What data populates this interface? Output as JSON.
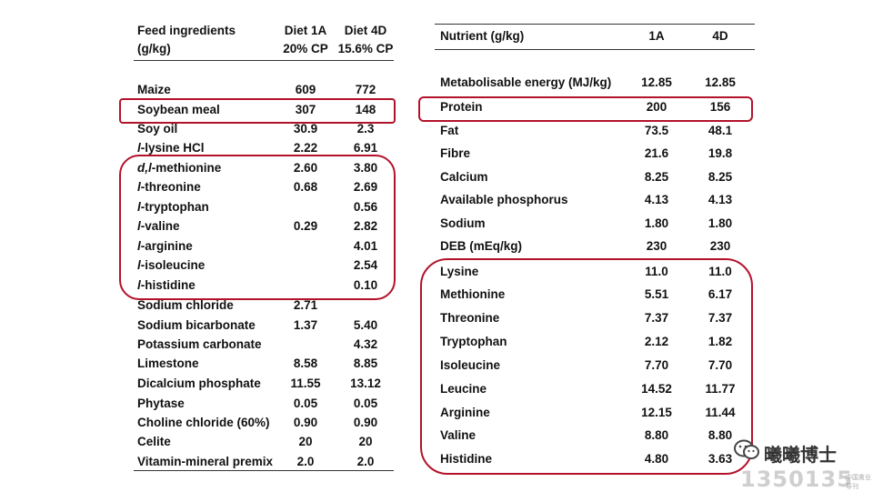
{
  "left_table": {
    "header": {
      "col1_line1": "Feed ingredients",
      "col1_line2": "(g/kg)",
      "col2_line1": "Diet 1A",
      "col2_line2": "20% CP",
      "col3_line1": "Diet 4D",
      "col3_line2": "15.6% CP"
    },
    "rows": [
      {
        "name_pre": "",
        "name_it": "",
        "name_post": "Maize",
        "v1": "609",
        "v2": "772"
      },
      {
        "name_pre": "",
        "name_it": "",
        "name_post": "Soybean meal",
        "v1": "307",
        "v2": "148"
      },
      {
        "name_pre": "",
        "name_it": "",
        "name_post": "Soy oil",
        "v1": "30.9",
        "v2": "2.3"
      },
      {
        "name_pre": "",
        "name_it": "l",
        "name_post": "-lysine HCl",
        "v1": "2.22",
        "v2": "6.91"
      },
      {
        "name_pre": "",
        "name_it": "d,l",
        "name_post": "-methionine",
        "v1": "2.60",
        "v2": "3.80"
      },
      {
        "name_pre": "",
        "name_it": "l",
        "name_post": "-threonine",
        "v1": "0.68",
        "v2": "2.69"
      },
      {
        "name_pre": "",
        "name_it": "l",
        "name_post": "-tryptophan",
        "v1": "",
        "v2": "0.56"
      },
      {
        "name_pre": "",
        "name_it": "l",
        "name_post": "-valine",
        "v1": "0.29",
        "v2": "2.82"
      },
      {
        "name_pre": "",
        "name_it": "l",
        "name_post": "-arginine",
        "v1": "",
        "v2": "4.01"
      },
      {
        "name_pre": "",
        "name_it": "l",
        "name_post": "-isoleucine",
        "v1": "",
        "v2": "2.54"
      },
      {
        "name_pre": "",
        "name_it": "l",
        "name_post": "-histidine",
        "v1": "",
        "v2": "0.10"
      },
      {
        "name_pre": "",
        "name_it": "",
        "name_post": "Sodium chloride",
        "v1": "2.71",
        "v2": ""
      },
      {
        "name_pre": "",
        "name_it": "",
        "name_post": "Sodium bicarbonate",
        "v1": "1.37",
        "v2": "5.40"
      },
      {
        "name_pre": "",
        "name_it": "",
        "name_post": "Potassium carbonate",
        "v1": "",
        "v2": "4.32"
      },
      {
        "name_pre": "",
        "name_it": "",
        "name_post": "Limestone",
        "v1": "8.58",
        "v2": "8.85"
      },
      {
        "name_pre": "",
        "name_it": "",
        "name_post": "Dicalcium phosphate",
        "v1": "11.55",
        "v2": "13.12"
      },
      {
        "name_pre": "",
        "name_it": "",
        "name_post": "Phytase",
        "v1": "0.05",
        "v2": "0.05"
      },
      {
        "name_pre": "",
        "name_it": "",
        "name_post": "Choline chloride (60%)",
        "v1": "0.90",
        "v2": "0.90"
      },
      {
        "name_pre": "",
        "name_it": "",
        "name_post": "Celite",
        "v1": "20",
        "v2": "20"
      },
      {
        "name_pre": "",
        "name_it": "",
        "name_post": "Vitamin-mineral premix",
        "v1": "2.0",
        "v2": "2.0"
      }
    ]
  },
  "right_table": {
    "header": {
      "col1": "Nutrient (g/kg)",
      "col2": "1A",
      "col3": "4D"
    },
    "rows": [
      {
        "name": "Metabolisable energy (MJ/kg)",
        "v1": "12.85",
        "v2": "12.85"
      },
      {
        "name": "Protein",
        "v1": "200",
        "v2": "156"
      },
      {
        "name": "Fat",
        "v1": "73.5",
        "v2": "48.1"
      },
      {
        "name": "Fibre",
        "v1": "21.6",
        "v2": "19.8"
      },
      {
        "name": "Calcium",
        "v1": "8.25",
        "v2": "8.25"
      },
      {
        "name": "Available phosphorus",
        "v1": "4.13",
        "v2": "4.13"
      },
      {
        "name": "Sodium",
        "v1": "1.80",
        "v2": "1.80"
      },
      {
        "name": "DEB (mEq/kg)",
        "v1": "230",
        "v2": "230"
      },
      {
        "name": "Lysine",
        "v1": "11.0",
        "v2": "11.0"
      },
      {
        "name": "Methionine",
        "v1": "5.51",
        "v2": "6.17"
      },
      {
        "name": "Threonine",
        "v1": "7.37",
        "v2": "7.37"
      },
      {
        "name": "Tryptophan",
        "v1": "2.12",
        "v2": "1.82"
      },
      {
        "name": "Isoleucine",
        "v1": "7.70",
        "v2": "7.70"
      },
      {
        "name": "Leucine",
        "v1": "14.52",
        "v2": "11.77"
      },
      {
        "name": "Arginine",
        "v1": "12.15",
        "v2": "11.44"
      },
      {
        "name": "Valine",
        "v1": "8.80",
        "v2": "8.80"
      },
      {
        "name": "Histidine",
        "v1": "4.80",
        "v2": "3.63"
      }
    ]
  },
  "watermark": {
    "name": "曦曦博士",
    "number": "1350135",
    "small": "中国禽业导刊"
  },
  "colors": {
    "highlight": "#b3122a",
    "rule": "#333333"
  }
}
